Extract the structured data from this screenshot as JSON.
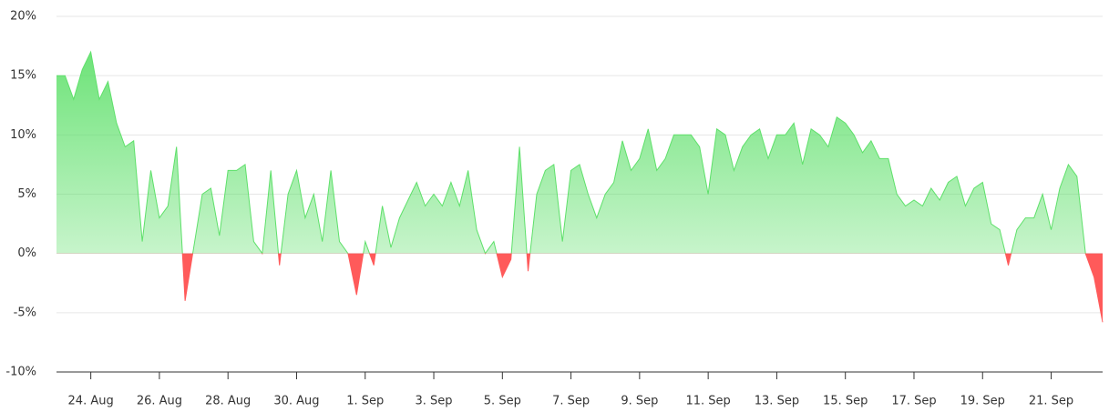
{
  "chart_data": {
    "type": "area",
    "x": [
      0,
      0.25,
      0.5,
      0.75,
      1,
      1.25,
      1.5,
      1.75,
      2,
      2.25,
      2.5,
      2.75,
      3,
      3.25,
      3.5,
      3.75,
      4,
      4.25,
      4.5,
      4.75,
      5,
      5.25,
      5.5,
      5.75,
      6,
      6.25,
      6.5,
      6.75,
      7,
      7.25,
      7.5,
      7.75,
      8,
      8.25,
      8.5,
      8.75,
      9,
      9.25,
      9.5,
      9.75,
      10,
      10.25,
      10.5,
      10.75,
      11,
      11.25,
      11.5,
      11.75,
      12,
      12.25,
      12.5,
      12.75,
      13,
      13.25,
      13.5,
      13.75,
      14,
      14.25,
      14.5,
      14.75,
      15,
      15.25,
      15.5,
      15.75,
      16,
      16.25,
      16.5,
      16.75,
      17,
      17.25,
      17.5,
      17.75,
      18,
      18.25,
      18.5,
      18.75,
      19,
      19.25,
      19.5,
      19.75,
      20,
      20.25,
      20.5,
      20.75,
      21,
      21.25,
      21.5,
      21.75,
      22,
      22.25,
      22.5,
      22.75,
      23,
      23.25,
      23.5,
      23.75,
      24,
      24.25,
      24.5,
      24.75,
      25,
      25.25,
      25.5,
      25.75,
      26,
      26.25,
      26.5,
      26.75,
      27,
      27.25,
      27.5,
      27.75,
      28,
      28.25,
      28.5,
      28.75,
      29,
      29.25,
      29.5,
      29.75,
      30,
      30.25,
      30.5
    ],
    "values": [
      15,
      15,
      13,
      15.5,
      17,
      13,
      14.5,
      11,
      9,
      9.5,
      1,
      7,
      3,
      4,
      9,
      -4,
      0.5,
      5,
      5.5,
      1.5,
      7,
      7,
      7.5,
      1,
      0,
      7,
      -1,
      5,
      7,
      3,
      5,
      1,
      7,
      1,
      0,
      -3.5,
      1,
      -1,
      4,
      0.5,
      3,
      4.5,
      6,
      4,
      5,
      4,
      6,
      4,
      7,
      2,
      0,
      1,
      -2,
      -0.5,
      9,
      -1.5,
      5,
      7,
      7.5,
      1,
      7,
      7.5,
      5,
      3,
      5,
      6,
      9.5,
      7,
      8,
      10.5,
      7,
      8,
      10,
      10,
      10,
      9,
      5,
      10.5,
      10,
      7,
      9,
      10,
      10.5,
      8,
      10,
      10,
      11,
      7.5,
      10.5,
      10,
      9,
      11.5,
      11,
      10,
      8.5,
      9.5,
      8,
      8,
      5,
      4,
      4.5,
      4,
      5.5,
      4.5,
      6,
      6.5,
      4,
      5.5,
      6,
      2.5,
      2,
      -1,
      2,
      3,
      3,
      5,
      2,
      5.5,
      7.5,
      6.5,
      0,
      -2,
      -5.8
    ],
    "xlim": [
      0,
      30.5
    ],
    "xticks": [
      {
        "value": 1,
        "label": "24. Aug"
      },
      {
        "value": 3,
        "label": "26. Aug"
      },
      {
        "value": 5,
        "label": "28. Aug"
      },
      {
        "value": 7,
        "label": "30. Aug"
      },
      {
        "value": 9,
        "label": "1. Sep"
      },
      {
        "value": 11,
        "label": "3. Sep"
      },
      {
        "value": 13,
        "label": "5. Sep"
      },
      {
        "value": 15,
        "label": "7. Sep"
      },
      {
        "value": 17,
        "label": "9. Sep"
      },
      {
        "value": 19,
        "label": "11. Sep"
      },
      {
        "value": 21,
        "label": "13. Sep"
      },
      {
        "value": 23,
        "label": "15. Sep"
      },
      {
        "value": 25,
        "label": "17. Sep"
      },
      {
        "value": 27,
        "label": "19. Sep"
      },
      {
        "value": 29,
        "label": "21. Sep"
      }
    ],
    "ylim": [
      -10,
      20
    ],
    "yticks": [
      {
        "value": -10,
        "label": "-10%"
      },
      {
        "value": -5,
        "label": "-5%"
      },
      {
        "value": 0,
        "label": "0%"
      },
      {
        "value": 5,
        "label": "5%"
      },
      {
        "value": 10,
        "label": "10%"
      },
      {
        "value": 15,
        "label": "15%"
      },
      {
        "value": 20,
        "label": "20%"
      }
    ],
    "grid": true,
    "positive_color": "#5ee06a",
    "negative_color": "#ff5a5a"
  }
}
